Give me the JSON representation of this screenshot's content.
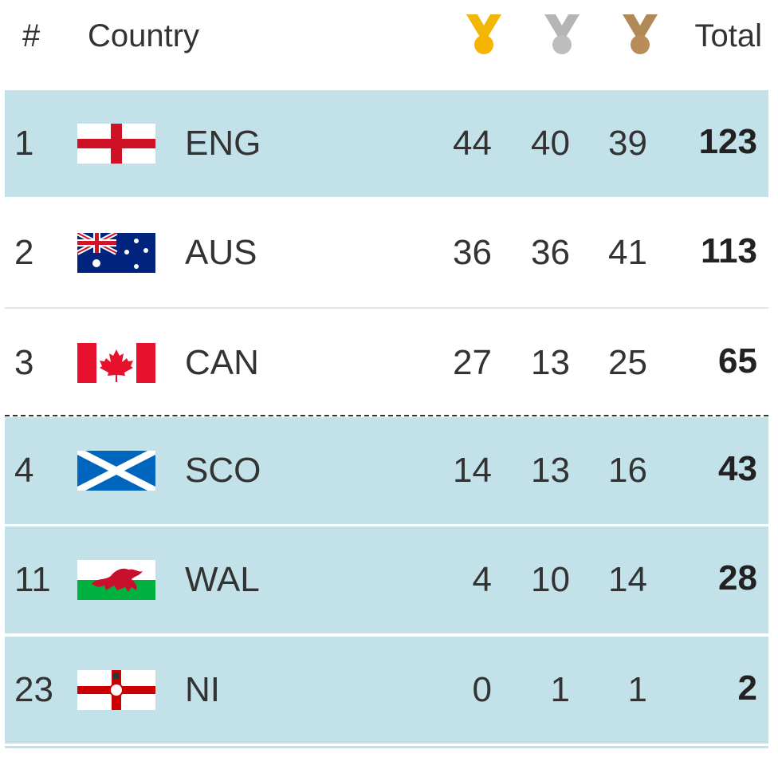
{
  "table": {
    "header": {
      "rank": "#",
      "country": "Country",
      "total": "Total"
    },
    "rows": [
      [
        "1",
        "ENG",
        "44",
        "40",
        "39",
        "123"
      ],
      [
        "2",
        "AUS",
        "36",
        "36",
        "41",
        "113"
      ],
      [
        "3",
        "CAN",
        "27",
        "13",
        "25",
        "65"
      ],
      [
        "4",
        "SCO",
        "14",
        "13",
        "16",
        "43"
      ],
      [
        "11",
        "WAL",
        "4",
        "10",
        "14",
        "28"
      ],
      [
        "23",
        "NI",
        "0",
        "1",
        "1",
        "2"
      ]
    ]
  }
}
